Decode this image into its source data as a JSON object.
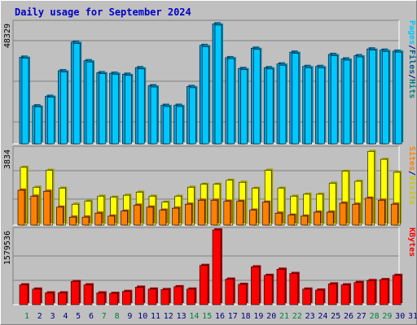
{
  "title": "Daily usage for September 2024",
  "colors": {
    "hits": "#00a0e0",
    "hits_shade": "#006090",
    "files": "#00c8ff",
    "files_shade": "#0080a8",
    "visits": "#ffff00",
    "visits_shade": "#a0a000",
    "sites": "#ff8000",
    "sites_shade": "#a05000",
    "kbytes": "#ff0000",
    "kbytes_shade": "#a00000",
    "weekend_label": "#008040",
    "weekday_label": "#000080"
  },
  "chart_data": [
    {
      "type": "bar",
      "panel": "hits_files",
      "y_tick_label": "48329",
      "ylim": [
        0,
        48329
      ],
      "legend": [
        "Pages",
        "/",
        "Files",
        "/",
        "Hits"
      ],
      "categories": [
        "1",
        "2",
        "3",
        "4",
        "5",
        "6",
        "7",
        "8",
        "9",
        "10",
        "11",
        "12",
        "13",
        "14",
        "15",
        "16",
        "17",
        "18",
        "19",
        "20",
        "21",
        "22",
        "23",
        "24",
        "25",
        "26",
        "27",
        "28",
        "29",
        "30"
      ],
      "series": [
        {
          "name": "Hits",
          "values": [
            34600,
            15200,
            19000,
            29200,
            40600,
            33200,
            28400,
            28200,
            27800,
            30400,
            23200,
            15400,
            15400,
            22900,
            39300,
            47900,
            34400,
            30100,
            38200,
            30400,
            31900,
            36600,
            30900,
            30900,
            35700,
            33900,
            35200,
            37900,
            37400,
            37000
          ]
        },
        {
          "name": "Files",
          "values": [
            34200,
            14700,
            18600,
            28700,
            40100,
            32700,
            28000,
            27800,
            27300,
            29900,
            22700,
            14900,
            14900,
            22400,
            38800,
            47400,
            34000,
            29600,
            37700,
            29900,
            31400,
            36100,
            30400,
            30400,
            35200,
            33400,
            34700,
            37400,
            36900,
            36600
          ]
        },
        {
          "name": "Pages",
          "values": [
            0,
            0,
            0,
            0,
            0,
            0,
            0,
            0,
            0,
            0,
            0,
            0,
            0,
            0,
            0,
            0,
            0,
            0,
            0,
            0,
            0,
            0,
            0,
            0,
            0,
            0,
            0,
            0,
            0,
            0
          ]
        }
      ]
    },
    {
      "type": "bar",
      "panel": "visits_sites",
      "y_tick_label": "3834",
      "ylim": [
        0,
        3834
      ],
      "legend": [
        "Sites",
        "/",
        "Visits"
      ],
      "categories": [
        "1",
        "2",
        "3",
        "4",
        "5",
        "6",
        "7",
        "8",
        "9",
        "10",
        "11",
        "12",
        "13",
        "14",
        "15",
        "16",
        "17",
        "18",
        "19",
        "20",
        "21",
        "22",
        "23",
        "24",
        "25",
        "26",
        "27",
        "28",
        "29",
        "30"
      ],
      "series": [
        {
          "name": "Visits",
          "values": [
            2900,
            1900,
            2750,
            1850,
            1050,
            1200,
            1450,
            1400,
            1500,
            1650,
            1450,
            1150,
            1450,
            1900,
            2050,
            2050,
            2250,
            2150,
            1850,
            2750,
            1850,
            1450,
            1550,
            1550,
            2100,
            2700,
            2200,
            3700,
            3300,
            2650
          ]
        },
        {
          "name": "Sites",
          "values": [
            1750,
            1450,
            1700,
            900,
            400,
            400,
            600,
            450,
            700,
            1000,
            900,
            750,
            850,
            1050,
            1250,
            1250,
            1200,
            1200,
            750,
            1150,
            600,
            500,
            450,
            650,
            650,
            1100,
            1050,
            1350,
            1250,
            1050
          ]
        }
      ]
    },
    {
      "type": "bar",
      "panel": "kbytes",
      "y_tick_label": "1579536",
      "ylim": [
        0,
        1579536
      ],
      "legend": [
        "KBytes"
      ],
      "categories": [
        "1",
        "2",
        "3",
        "4",
        "5",
        "6",
        "7",
        "8",
        "9",
        "10",
        "11",
        "12",
        "13",
        "14",
        "15",
        "16",
        "17",
        "18",
        "19",
        "20",
        "21",
        "22",
        "23",
        "24",
        "25",
        "26",
        "27",
        "28",
        "29",
        "30"
      ],
      "series": [
        {
          "name": "KBytes",
          "values": [
            420000,
            330000,
            250000,
            250000,
            490000,
            420000,
            250000,
            240000,
            280000,
            370000,
            330000,
            320000,
            380000,
            330000,
            830000,
            1579536,
            540000,
            430000,
            800000,
            620000,
            750000,
            660000,
            330000,
            310000,
            440000,
            420000,
            470000,
            510000,
            530000,
            620000
          ]
        }
      ]
    }
  ],
  "x_labels": [
    "1",
    "2",
    "3",
    "4",
    "5",
    "6",
    "7",
    "8",
    "9",
    "10",
    "11",
    "12",
    "13",
    "14",
    "15",
    "16",
    "17",
    "18",
    "19",
    "20",
    "21",
    "22",
    "23",
    "24",
    "25",
    "26",
    "27",
    "28",
    "29",
    "30",
    "31"
  ],
  "weekend_days": [
    "1",
    "7",
    "8",
    "14",
    "15",
    "21",
    "22",
    "28",
    "29"
  ]
}
